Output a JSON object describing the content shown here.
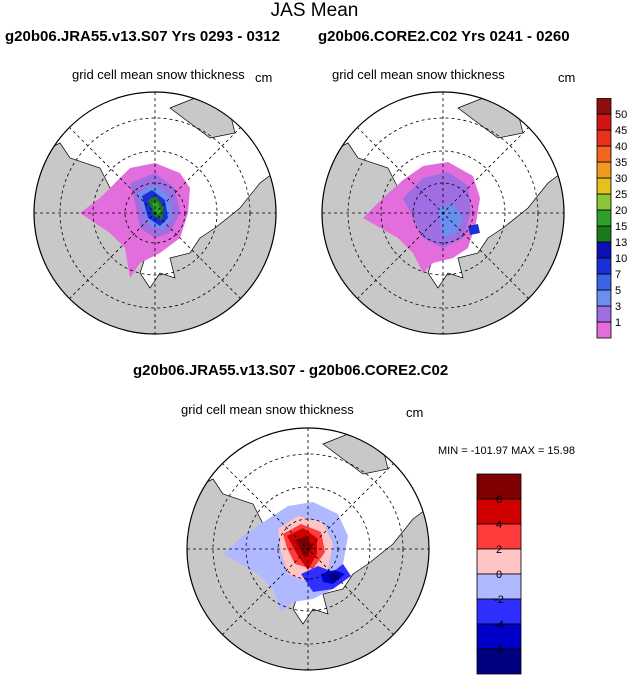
{
  "figure": {
    "title": "JAS Mean"
  },
  "panels": {
    "left": {
      "title": "g20b06.JRA55.v13.S07  Yrs 0293 - 0312",
      "variable": "grid cell mean snow thickness",
      "units": "cm"
    },
    "right": {
      "title": "g20b06.CORE2.C02  Yrs 0241 - 0260",
      "variable": "grid cell mean snow thickness",
      "units": "cm"
    },
    "diff": {
      "title": "g20b06.JRA55.v13.S07 - g20b06.CORE2.C02",
      "variable": "grid cell mean snow thickness",
      "units": "cm",
      "stats": "MIN = -101.97 MAX =  15.98"
    }
  },
  "colors": {
    "land": "#c8c8c8",
    "ocean": "#ffffff",
    "grid": "#000000"
  },
  "chart_data": [
    {
      "type": "map",
      "projection": "north-polar-stereographic",
      "name": "snow thickness JRA55",
      "units": "cm",
      "colorbar": {
        "labels": [
          "1",
          "3",
          "5",
          "7",
          "10",
          "13",
          "15",
          "20",
          "25",
          "30",
          "35",
          "40",
          "45",
          "50"
        ],
        "colors": [
          "#e36ddc",
          "#9f6ee3",
          "#6b8ff0",
          "#3b63e6",
          "#1a2fd6",
          "#0f0fb8",
          "#1a7a1a",
          "#2ea02e",
          "#8cc43a",
          "#e3c21e",
          "#f29a1e",
          "#f2661e",
          "#e8321e",
          "#d41414",
          "#8f0f0f"
        ]
      }
    },
    {
      "type": "map",
      "projection": "north-polar-stereographic",
      "name": "snow thickness CORE2",
      "units": "cm"
    },
    {
      "type": "map",
      "projection": "north-polar-stereographic",
      "name": "snow thickness difference",
      "units": "cm",
      "min": -101.97,
      "max": 15.98,
      "colorbar": {
        "labels": [
          "6",
          "4",
          "2",
          "0",
          "-2",
          "-4",
          "-6"
        ],
        "colors": [
          "#7f0000",
          "#d10000",
          "#ff3b3b",
          "#ffc4c4",
          "#b0b8ff",
          "#2f2fff",
          "#0000c8",
          "#000080"
        ]
      }
    }
  ]
}
